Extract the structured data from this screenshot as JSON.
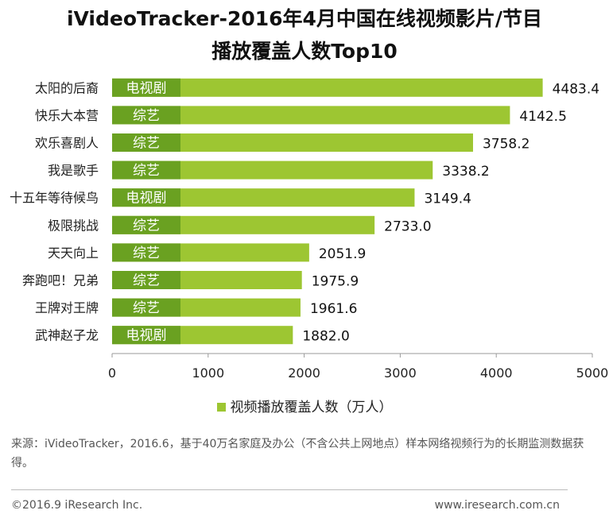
{
  "header": {
    "title_line1": "iVideoTracker-2016年4月中国在线视频影片/节目",
    "title_line2": "播放覆盖人数Top10"
  },
  "chart_data": {
    "type": "bar",
    "orientation": "horizontal",
    "title": "iVideoTracker-2016年4月中国在线视频影片/节目播放覆盖人数Top10",
    "categories": [
      "太阳的后裔",
      "快乐大本营",
      "欢乐喜剧人",
      "我是歌手",
      "十五年等待候鸟",
      "极限挑战",
      "天天向上",
      "奔跑吧！兄弟",
      "王牌对王牌",
      "武神赵子龙"
    ],
    "genres": [
      "电视剧",
      "综艺",
      "综艺",
      "综艺",
      "电视剧",
      "综艺",
      "综艺",
      "综艺",
      "综艺",
      "电视剧"
    ],
    "series": [
      {
        "name": "视频播放覆盖人数（万人）",
        "values": [
          4483.4,
          4142.5,
          3758.2,
          3338.2,
          3149.4,
          2733.0,
          2051.9,
          1975.9,
          1961.6,
          1882.0
        ],
        "value_labels": [
          "4483.4",
          "4142.5",
          "3758.2",
          "3338.2",
          "3149.4",
          "2733.0",
          "2051.9",
          "1975.9",
          "1961.6",
          "1882.0"
        ]
      }
    ],
    "xlim": [
      0,
      5000
    ],
    "xticks": [
      "0",
      "1000",
      "2000",
      "3000",
      "4000",
      "5000"
    ],
    "grid": false,
    "legend_position": "bottom",
    "bar_color": "#9dc632",
    "tag_color": "#6aa121"
  },
  "legend": {
    "label": "视频播放覆盖人数（万人）"
  },
  "footer": {
    "note": "来源：iVideoTracker，2016.6，基于40万名家庭及办公（不含公共上网地点）样本网络视频行为的长期监测数据获得。",
    "copyright": "©2016.9 iResearch Inc.",
    "website": "www.iresearch.com.cn"
  }
}
